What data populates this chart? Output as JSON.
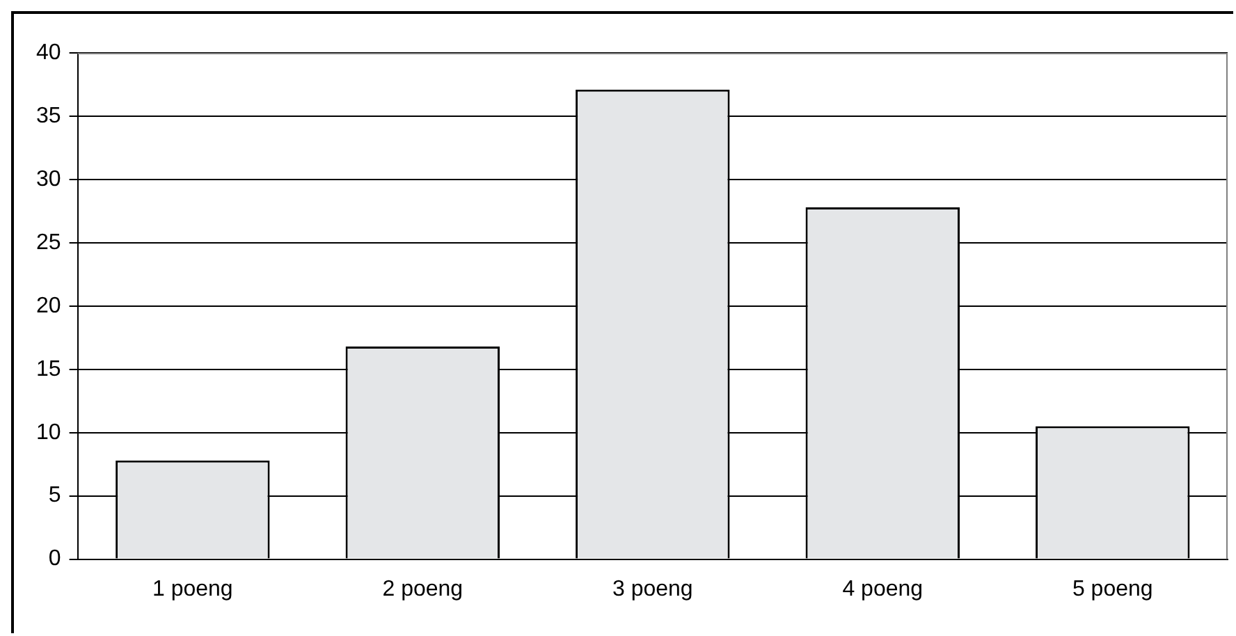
{
  "chart_data": {
    "type": "bar",
    "categories": [
      "1 poeng",
      "2 poeng",
      "3 poeng",
      "4 poeng",
      "5 poeng"
    ],
    "values": [
      7.8,
      16.8,
      37.1,
      27.8,
      10.5
    ],
    "color": "#e4e6e8",
    "ylim": [
      0,
      40
    ],
    "yticks": [
      0,
      5,
      10,
      15,
      20,
      25,
      30,
      35,
      40
    ],
    "grid": "y",
    "legend": false
  }
}
